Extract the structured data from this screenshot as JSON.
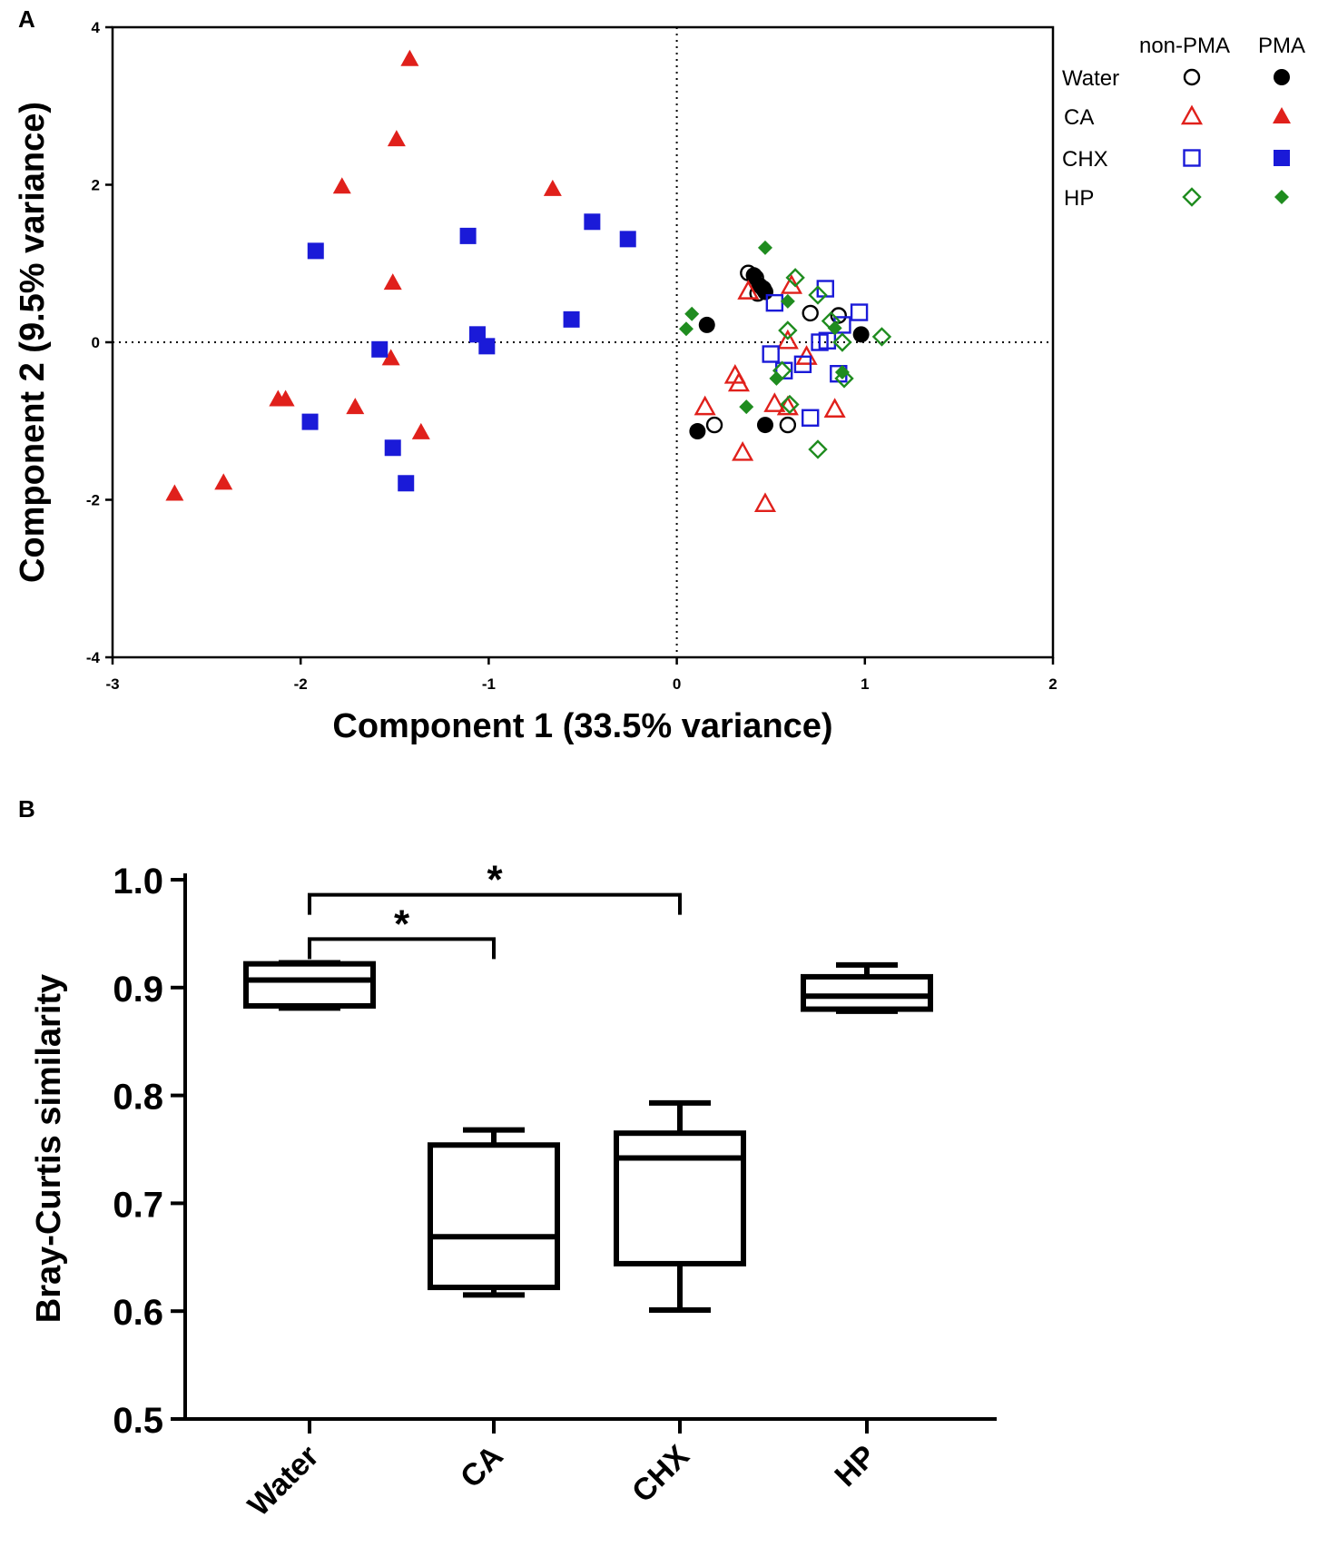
{
  "chart_data": [
    {
      "panel": "A",
      "type": "scatter",
      "xlabel": "Component 1 (33.5% variance)",
      "ylabel": "Component 2 (9.5% variance)",
      "xlim": [
        -3,
        2
      ],
      "ylim": [
        -4,
        4
      ],
      "xticks": [
        "-3",
        "-2",
        "-1",
        "0",
        "1",
        "2"
      ],
      "yticks": [
        "4",
        "2",
        "0",
        "-2",
        "-4"
      ],
      "reference_lines": {
        "x": 0,
        "y": 0
      },
      "legend": {
        "position": "top-right",
        "column_headers": [
          "non-PMA",
          "PMA"
        ],
        "rows": [
          "Water",
          "CA",
          "CHX",
          "HP"
        ]
      },
      "series": [
        {
          "name": "Water non-PMA",
          "group": "Water",
          "pma": false,
          "marker": "circle",
          "filled": false,
          "color": "#000000",
          "points": [
            [
              0.38,
              0.88
            ],
            [
              0.42,
              0.82
            ],
            [
              0.43,
              0.62
            ],
            [
              0.46,
              0.68
            ],
            [
              0.71,
              0.37
            ],
            [
              0.86,
              0.34
            ],
            [
              0.2,
              -1.05
            ],
            [
              0.59,
              -1.05
            ]
          ]
        },
        {
          "name": "Water PMA",
          "group": "Water",
          "pma": true,
          "marker": "circle",
          "filled": true,
          "color": "#000000",
          "points": [
            [
              0.41,
              0.85
            ],
            [
              0.44,
              0.72
            ],
            [
              0.47,
              0.64
            ],
            [
              0.16,
              0.22
            ],
            [
              0.98,
              0.1
            ],
            [
              0.11,
              -1.13
            ],
            [
              0.47,
              -1.05
            ]
          ]
        },
        {
          "name": "CA non-PMA",
          "group": "CA",
          "pma": false,
          "marker": "triangle",
          "filled": false,
          "color": "#e0201b",
          "points": [
            [
              0.38,
              0.65
            ],
            [
              0.61,
              0.72
            ],
            [
              0.59,
              0.02
            ],
            [
              0.69,
              -0.18
            ],
            [
              0.31,
              -0.42
            ],
            [
              0.33,
              -0.52
            ],
            [
              0.15,
              -0.82
            ],
            [
              0.52,
              -0.78
            ],
            [
              0.59,
              -0.82
            ],
            [
              0.84,
              -0.85
            ],
            [
              0.35,
              -1.4
            ],
            [
              0.47,
              -2.05
            ]
          ]
        },
        {
          "name": "CA PMA",
          "group": "CA",
          "pma": true,
          "marker": "triangle",
          "filled": true,
          "color": "#e0201b",
          "points": [
            [
              -1.42,
              3.6
            ],
            [
              -1.49,
              2.58
            ],
            [
              -1.78,
              1.98
            ],
            [
              -0.66,
              1.95
            ],
            [
              -1.51,
              0.76
            ],
            [
              -1.52,
              -0.2
            ],
            [
              -2.12,
              -0.72
            ],
            [
              -2.08,
              -0.72
            ],
            [
              -1.71,
              -0.82
            ],
            [
              -1.36,
              -1.14
            ],
            [
              -2.41,
              -1.78
            ],
            [
              -2.67,
              -1.92
            ]
          ]
        },
        {
          "name": "CHX non-PMA",
          "group": "CHX",
          "pma": false,
          "marker": "square",
          "filled": false,
          "color": "#1a1ad8",
          "points": [
            [
              0.79,
              0.68
            ],
            [
              0.52,
              0.5
            ],
            [
              0.97,
              0.38
            ],
            [
              0.88,
              0.22
            ],
            [
              0.8,
              0.02
            ],
            [
              0.76,
              0.0
            ],
            [
              0.5,
              -0.15
            ],
            [
              0.67,
              -0.28
            ],
            [
              0.57,
              -0.36
            ],
            [
              0.86,
              -0.4
            ],
            [
              0.71,
              -0.96
            ]
          ]
        },
        {
          "name": "CHX PMA",
          "group": "CHX",
          "pma": true,
          "marker": "square",
          "filled": true,
          "color": "#1a1ad8",
          "points": [
            [
              -1.92,
              1.16
            ],
            [
              -1.11,
              1.35
            ],
            [
              -0.45,
              1.53
            ],
            [
              -0.26,
              1.31
            ],
            [
              -0.56,
              0.29
            ],
            [
              -1.06,
              0.1
            ],
            [
              -1.01,
              -0.05
            ],
            [
              -1.58,
              -0.09
            ],
            [
              -1.95,
              -1.01
            ],
            [
              -1.51,
              -1.34
            ],
            [
              -1.44,
              -1.79
            ]
          ]
        },
        {
          "name": "HP non-PMA",
          "group": "HP",
          "pma": false,
          "marker": "diamond",
          "filled": false,
          "color": "#1f8c1f",
          "points": [
            [
              0.63,
              0.82
            ],
            [
              0.75,
              0.6
            ],
            [
              0.59,
              0.15
            ],
            [
              0.82,
              0.27
            ],
            [
              0.88,
              0.0
            ],
            [
              1.09,
              0.07
            ],
            [
              0.56,
              -0.36
            ],
            [
              0.89,
              -0.46
            ],
            [
              0.6,
              -0.79
            ],
            [
              0.75,
              -1.36
            ]
          ]
        },
        {
          "name": "HP PMA",
          "group": "HP",
          "pma": true,
          "marker": "diamond",
          "filled": true,
          "color": "#1f8c1f",
          "points": [
            [
              0.47,
              1.2
            ],
            [
              0.08,
              0.36
            ],
            [
              0.05,
              0.17
            ],
            [
              0.84,
              0.18
            ],
            [
              0.59,
              0.52
            ],
            [
              0.53,
              -0.46
            ],
            [
              0.88,
              -0.38
            ],
            [
              0.37,
              -0.82
            ]
          ]
        }
      ]
    },
    {
      "panel": "B",
      "type": "box",
      "ylabel": "Bray-Curtis similarity",
      "ylim": [
        0.5,
        1.0
      ],
      "yticks": [
        "1.0",
        "0.9",
        "0.8",
        "0.7",
        "0.6",
        "0.5"
      ],
      "categories": [
        "Water",
        "CA",
        "CHX",
        "HP"
      ],
      "boxes": [
        {
          "category": "Water",
          "min": 0.881,
          "q1": 0.883,
          "median": 0.907,
          "q3": 0.922,
          "max": 0.923
        },
        {
          "category": "CA",
          "min": 0.615,
          "q1": 0.622,
          "median": 0.669,
          "q3": 0.754,
          "max": 0.768
        },
        {
          "category": "CHX",
          "min": 0.601,
          "q1": 0.644,
          "median": 0.742,
          "q3": 0.765,
          "max": 0.793
        },
        {
          "category": "HP",
          "min": 0.878,
          "q1": 0.88,
          "median": 0.892,
          "q3": 0.91,
          "max": 0.921
        }
      ],
      "significance": [
        {
          "from": "Water",
          "to": "CA",
          "label": "*",
          "level": 0.945
        },
        {
          "from": "Water",
          "to": "CHX",
          "label": "*",
          "level": 0.986
        }
      ]
    }
  ]
}
